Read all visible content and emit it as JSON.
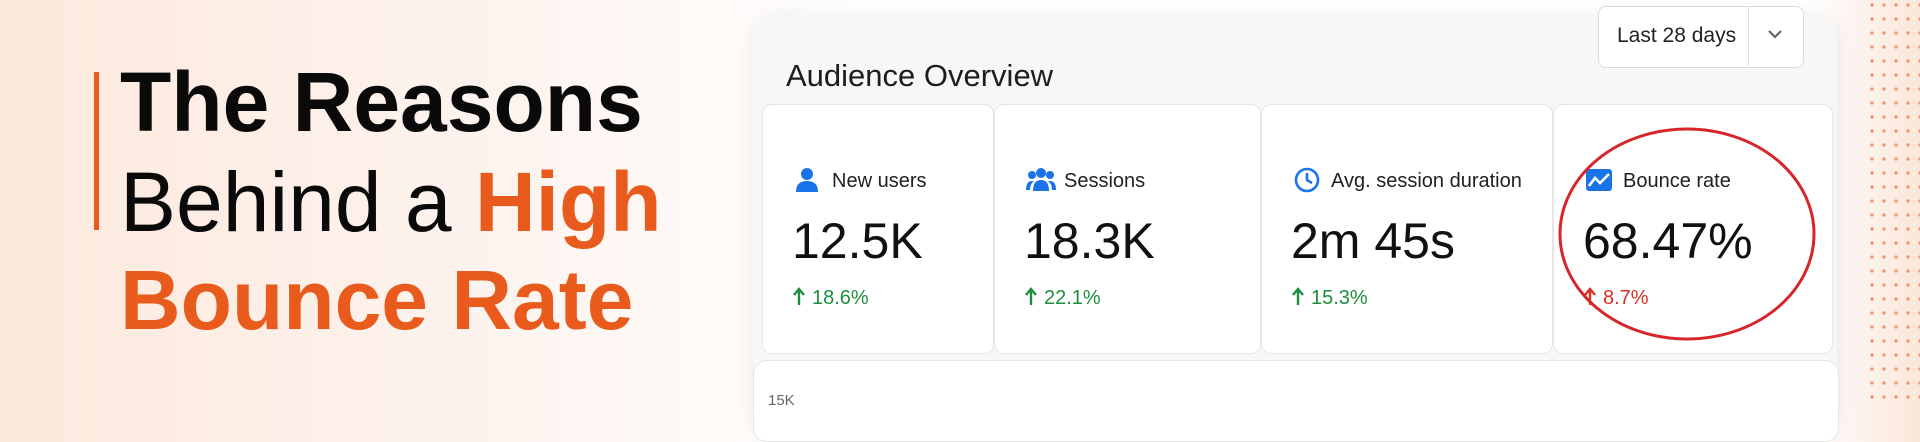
{
  "headline": {
    "line1": "The Reasons",
    "line2": "Behind a",
    "line2_highlight": "High",
    "line3": "Bounce Rate"
  },
  "dashboard": {
    "title": "Audience Overview",
    "date_range": "Last 28 days",
    "metrics": [
      {
        "label": "New users",
        "value": "12.5K",
        "change": "18.6%",
        "change_color": "#1e8e3e"
      },
      {
        "label": "Sessions",
        "value": "18.3K",
        "change": "22.1%",
        "change_color": "#1e8e3e"
      },
      {
        "label": "Avg. session duration",
        "value": "2m 45s",
        "change": "15.3%",
        "change_color": "#1e8e3e"
      },
      {
        "label": "Bounce rate",
        "value": "68.47%",
        "change": "8.7%",
        "change_color": "#d93025"
      }
    ],
    "chart_axis_label": "15K"
  }
}
